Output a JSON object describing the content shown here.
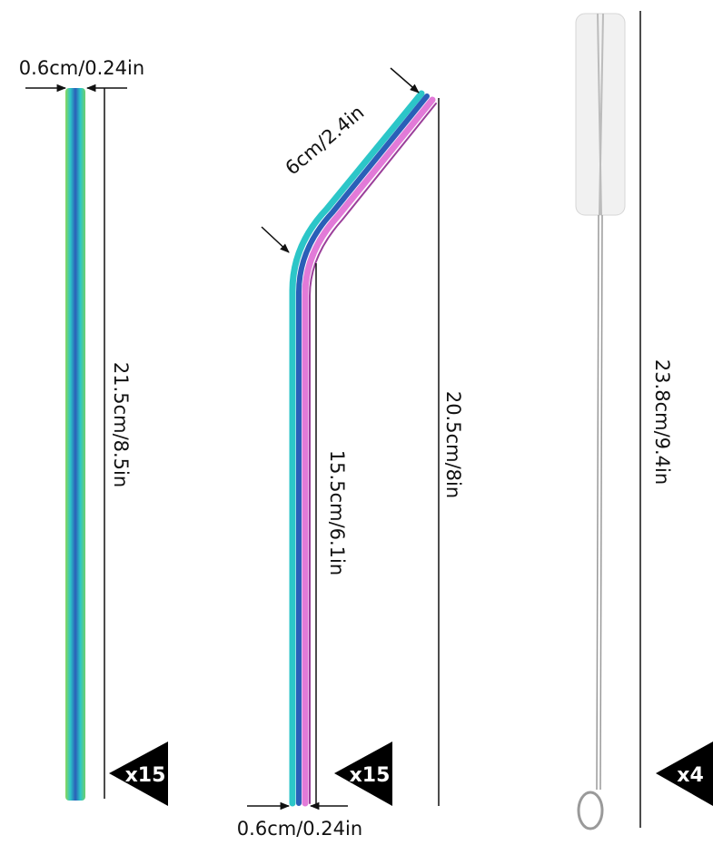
{
  "straight_straw": {
    "diameter_label": "0.6cm/0.24in",
    "length_label": "21.5cm/8.5in",
    "quantity_label": "x15"
  },
  "bent_straw": {
    "bend_label": "6cm/2.4in",
    "total_length_label": "20.5cm/8in",
    "straight_length_label": "15.5cm/6.1in",
    "diameter_label": "0.6cm/0.24in",
    "quantity_label": "x15"
  },
  "cleaning_brush": {
    "length_label": "23.8cm/9.4in",
    "quantity_label": "x4"
  },
  "colors": {
    "straw_teal": "#2cc6c8",
    "straw_blue": "#2a5fb8",
    "straw_pink": "#e27ad8",
    "straw_green": "#6fd06a",
    "badge": "#000000"
  }
}
